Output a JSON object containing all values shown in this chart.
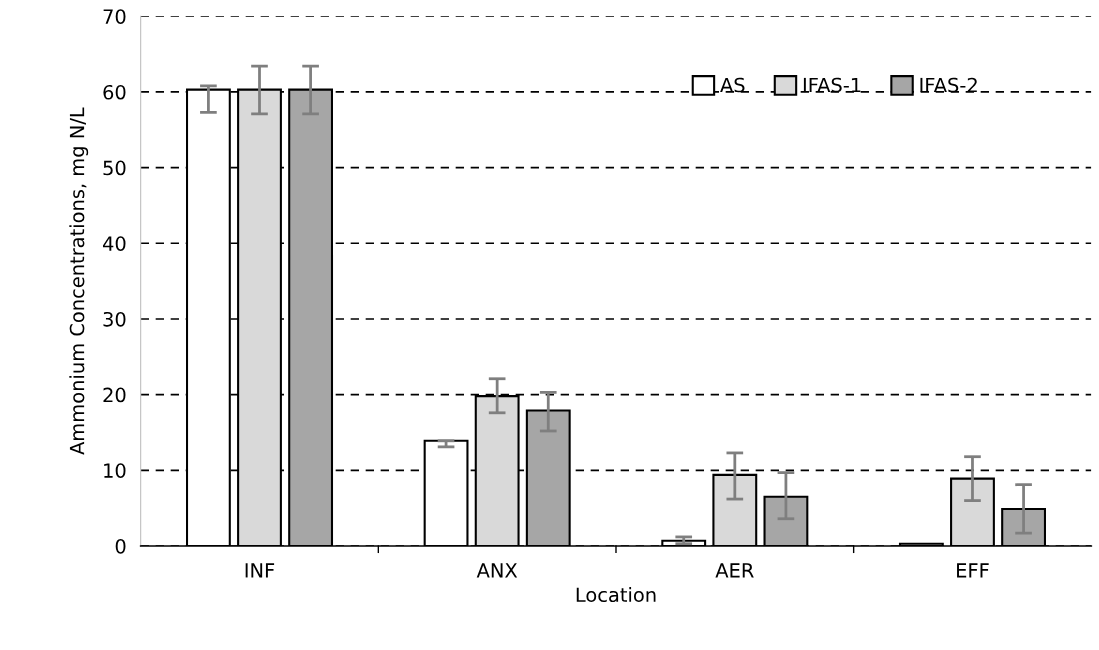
{
  "chart_data": {
    "type": "bar",
    "xlabel": "Location",
    "ylabel": "Ammonium Concentrations, mg N/L",
    "categories": [
      "INF",
      "ANX",
      "AER",
      "EFF"
    ],
    "series": [
      {
        "name": "AS",
        "color": "#ffffff",
        "values": [
          60.3,
          13.9,
          0.7,
          0.3
        ],
        "errors": [
          [
            57.3,
            60.8
          ],
          [
            13.1,
            13.9
          ],
          [
            0.3,
            1.2
          ],
          null
        ]
      },
      {
        "name": "IFAS-1",
        "color": "#d9d9d9",
        "values": [
          60.3,
          19.8,
          9.4,
          8.9
        ],
        "errors": [
          [
            57.1,
            63.4
          ],
          [
            17.6,
            22.1
          ],
          [
            6.2,
            12.3
          ],
          [
            6.0,
            11.8
          ]
        ]
      },
      {
        "name": "IFAS-2",
        "color": "#a6a6a6",
        "values": [
          60.3,
          17.9,
          6.5,
          4.9
        ],
        "errors": [
          [
            57.1,
            63.4
          ],
          [
            15.2,
            20.3
          ],
          [
            3.6,
            9.7
          ],
          [
            1.7,
            8.1
          ]
        ]
      }
    ],
    "ylim": [
      0,
      70
    ],
    "yticks": [
      0,
      10,
      20,
      30,
      40,
      50,
      60,
      70
    ],
    "grid": "y",
    "legend": "top right"
  }
}
